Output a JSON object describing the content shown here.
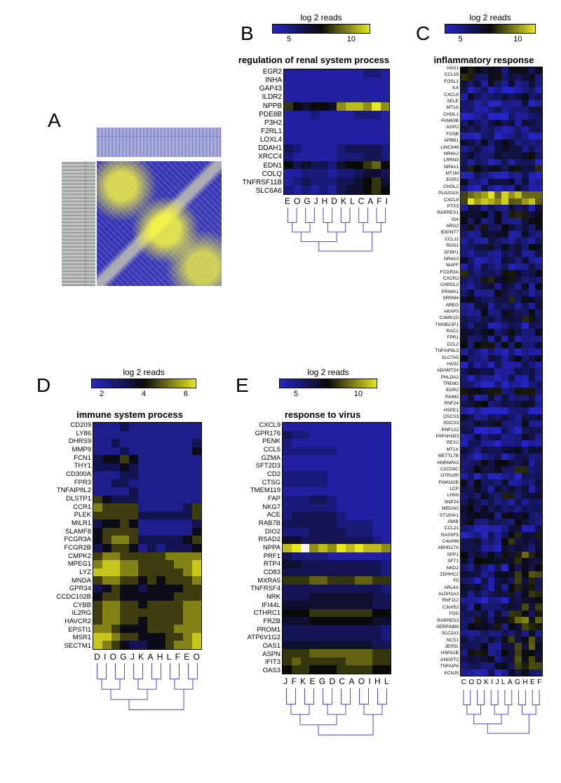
{
  "colormap": {
    "low": "#2525c5",
    "mid_low": "#1a1a80",
    "mid": "#0a0a0a",
    "mid_high": "#808010",
    "high": "#e8e820",
    "white": "#ffffff"
  },
  "colorbar_label": "log 2 reads",
  "panelA": {
    "label": "A",
    "dendro_color": "#4a4ad0"
  },
  "panelB": {
    "label": "B",
    "title": "regulation of renal system process",
    "ticks": [
      "5",
      "10"
    ],
    "genes": [
      "EGR2",
      "INHA",
      "GAP43",
      "ILDR2",
      "NPPB",
      "PDE8B",
      "P3H2",
      "F2RL1",
      "LOXL4",
      "DDAH1",
      "XRCC4",
      "EDN1",
      "COLQ",
      "TNFRSF11B",
      "SLC6A6"
    ],
    "cols": [
      "E",
      "O",
      "G",
      "J",
      "H",
      "D",
      "K",
      "L",
      "C",
      "A",
      "F",
      "I"
    ],
    "values": [
      [
        3,
        3,
        3,
        3,
        3,
        3,
        3,
        3,
        3,
        4,
        4,
        3
      ],
      [
        3,
        3,
        3,
        3,
        3,
        3,
        3,
        3,
        3,
        3,
        3,
        3
      ],
      [
        3,
        3,
        3,
        3,
        3,
        3,
        3,
        3,
        3,
        3,
        3,
        3
      ],
      [
        3,
        3,
        3,
        3,
        3,
        3,
        3,
        3,
        3,
        3,
        3,
        3
      ],
      [
        8,
        7,
        6,
        7,
        7,
        6,
        10,
        11,
        11,
        10,
        12,
        10
      ],
      [
        3,
        3,
        3,
        4,
        3,
        3,
        3,
        3,
        4,
        4,
        4,
        3
      ],
      [
        3,
        3,
        3,
        3,
        3,
        3,
        3,
        3,
        3,
        3,
        3,
        3
      ],
      [
        3,
        3,
        3,
        3,
        3,
        3,
        3,
        3,
        3,
        3,
        3,
        3
      ],
      [
        3,
        3,
        3,
        3,
        3,
        3,
        3,
        3,
        3,
        3,
        3,
        3
      ],
      [
        5,
        4,
        3,
        3,
        3,
        3,
        4,
        5,
        5,
        5,
        5,
        4
      ],
      [
        4,
        3,
        3,
        3,
        3,
        3,
        4,
        4,
        4,
        5,
        5,
        4
      ],
      [
        7,
        5,
        6,
        5,
        5,
        4,
        6,
        7,
        7,
        8,
        9,
        7
      ],
      [
        3,
        3,
        4,
        4,
        4,
        3,
        4,
        4,
        5,
        6,
        6,
        5
      ],
      [
        3,
        4,
        5,
        4,
        4,
        4,
        5,
        5,
        6,
        7,
        8,
        6
      ],
      [
        4,
        3,
        4,
        3,
        4,
        3,
        5,
        6,
        6,
        7,
        8,
        7
      ]
    ]
  },
  "panelC": {
    "label": "C",
    "title": "inflammatory response",
    "ticks": [
      "5",
      "10"
    ],
    "genes": [
      "HAS1",
      "CCL19",
      "FOSL1",
      "IL6",
      "CXCL8",
      "SELE",
      "MT1A",
      "CHI3L1",
      "FAM43B",
      "AGR2",
      "FOSB",
      "APBB1",
      "LINC948",
      "NR4A2",
      "LRRN3",
      "NR4A1",
      "MT1M",
      "EGR3",
      "CHI3L2",
      "PLA2G2A",
      "CXCL9",
      "PTX3",
      "RARRES1",
      "ID4",
      "ARG2",
      "B3GNT7",
      "CCL11",
      "RGS1",
      "SFRP1",
      "NR4A3",
      "MAFF",
      "FCGR3A",
      "CXCR2",
      "CHRDL2",
      "PRIMA1",
      "SRRM4",
      "AREG",
      "AKAP5",
      "CAMK1D",
      "TMSB10P1",
      "RAC2",
      "FPR1",
      "CCL2",
      "TNFAIP8L3",
      "SLC7A5",
      "HAS2",
      "ADAMTS4",
      "PHLDA2",
      "TREM2",
      "EGR2",
      "PAIM2",
      "RNF24",
      "HSPE1",
      "OSCS3",
      "SGCS3",
      "RNF122",
      "PAFAH1B3",
      "REX2",
      "MT1X",
      "METTL7B",
      "HNRNPA3",
      "C2CD4C",
      "OTR10R",
      "FAM162B",
      "LCP",
      "LHX6",
      "SNP24",
      "MEDAG",
      "ST100A1",
      "SMIB",
      "CCL21",
      "RASSF5",
      "C4orf48",
      "ABHD17A",
      "SPP1",
      "SFT1",
      "NKD2",
      "ZDHHC2",
      "F5",
      "ARL4A",
      "ALDH1A3",
      "RNF112",
      "C3orf52",
      "FOS",
      "RARRES3",
      "SERPINB8",
      "SLC2A3",
      "NCS1",
      "JER5L",
      "HSPA1B",
      "ANGPT2",
      "TNFAIP6",
      "KCNJ5"
    ],
    "cols": [
      "C",
      "O",
      "D",
      "K",
      "I",
      "J",
      "L",
      "A",
      "G",
      "H",
      "E",
      "F"
    ],
    "value_range": [
      2,
      12
    ]
  },
  "panelD": {
    "label": "D",
    "title": "immune system process",
    "ticks": [
      "2",
      "4",
      "6"
    ],
    "genes": [
      "CD209",
      "LY86",
      "DHRS9",
      "MMP9",
      "FCN1",
      "THY1",
      "CD300A",
      "FPR3",
      "TNFAIP8L2",
      "DLSTP1",
      "CCR1",
      "PLEK",
      "MILR1",
      "SLAMF8",
      "FCGR3A",
      "FCGR2B",
      "CMPK2",
      "MPEG1",
      "LYZ",
      "MNDA",
      "GPR34",
      "CCDC102B",
      "CYBB",
      "IL2RG",
      "HAVCR2",
      "EPSTI1",
      "MSR1",
      "SECTM1"
    ],
    "cols": [
      "D",
      "I",
      "O",
      "G",
      "J",
      "K",
      "A",
      "H",
      "L",
      "F",
      "E",
      "O"
    ],
    "values": [
      [
        2,
        2,
        2,
        3,
        2,
        2,
        2,
        2,
        2,
        2,
        2,
        2
      ],
      [
        2,
        2,
        2,
        2,
        2,
        2,
        2,
        2,
        2,
        2,
        2,
        2
      ],
      [
        2,
        2,
        3,
        2,
        2,
        2,
        2,
        2,
        2,
        2,
        2,
        3
      ],
      [
        2,
        2,
        2,
        3,
        2,
        2,
        2,
        2,
        2,
        2,
        2,
        4
      ],
      [
        3,
        4,
        4,
        5,
        4,
        2,
        2,
        2,
        2,
        2,
        2,
        2
      ],
      [
        3,
        3,
        3,
        4,
        3,
        2,
        2,
        2,
        2,
        2,
        2,
        2
      ],
      [
        2,
        2,
        2,
        3,
        3,
        2,
        2,
        2,
        2,
        2,
        2,
        2
      ],
      [
        2,
        2,
        3,
        3,
        2,
        2,
        2,
        2,
        2,
        2,
        2,
        2
      ],
      [
        2,
        2,
        2,
        2,
        3,
        2,
        2,
        2,
        2,
        2,
        2,
        2
      ],
      [
        5,
        4,
        3,
        3,
        3,
        2,
        2,
        2,
        2,
        2,
        2,
        2
      ],
      [
        6,
        5,
        5,
        5,
        5,
        2,
        2,
        2,
        2,
        2,
        3,
        5
      ],
      [
        5,
        5,
        5,
        5,
        5,
        3,
        3,
        3,
        3,
        3,
        3,
        5
      ],
      [
        3,
        4,
        4,
        5,
        4,
        2,
        2,
        2,
        2,
        2,
        2,
        3
      ],
      [
        4,
        5,
        5,
        5,
        5,
        2,
        2,
        2,
        2,
        2,
        2,
        4
      ],
      [
        4,
        5,
        6,
        6,
        5,
        3,
        3,
        3,
        3,
        3,
        4,
        5
      ],
      [
        3,
        4,
        5,
        5,
        4,
        2,
        3,
        2,
        3,
        3,
        3,
        4
      ],
      [
        5,
        6,
        6,
        5,
        5,
        5,
        5,
        5,
        6,
        6,
        6,
        6
      ],
      [
        6,
        7,
        7,
        6,
        6,
        5,
        5,
        5,
        5,
        6,
        6,
        7
      ],
      [
        7,
        7,
        7,
        6,
        6,
        5,
        5,
        5,
        5,
        5,
        6,
        7
      ],
      [
        5,
        6,
        6,
        5,
        5,
        4,
        5,
        4,
        5,
        5,
        5,
        6
      ],
      [
        3,
        4,
        5,
        4,
        4,
        3,
        4,
        4,
        4,
        4,
        5,
        5
      ],
      [
        4,
        5,
        5,
        4,
        4,
        4,
        4,
        4,
        4,
        5,
        5,
        5
      ],
      [
        5,
        6,
        6,
        5,
        5,
        4,
        5,
        5,
        5,
        5,
        6,
        6
      ],
      [
        5,
        6,
        6,
        5,
        5,
        5,
        5,
        5,
        5,
        5,
        6,
        6
      ],
      [
        5,
        6,
        6,
        5,
        5,
        4,
        5,
        5,
        5,
        5,
        6,
        6
      ],
      [
        6,
        6,
        5,
        4,
        4,
        4,
        5,
        5,
        5,
        6,
        6,
        6
      ],
      [
        7,
        7,
        6,
        5,
        5,
        4,
        4,
        4,
        5,
        5,
        6,
        7
      ],
      [
        7,
        6,
        5,
        4,
        3,
        3,
        4,
        4,
        5,
        6,
        6,
        7
      ]
    ]
  },
  "panelE": {
    "label": "E",
    "title": "response to virus",
    "ticks": [
      "5",
      "10"
    ],
    "genes": [
      "CXCL9",
      "GPR176",
      "PENK",
      "CCL5",
      "GZMA",
      "SFT2D3",
      "CD2",
      "CTSG",
      "TMEM119",
      "FAP",
      "NKG7",
      "ACE",
      "RAB7B",
      "DIO2",
      "RSAD2",
      "NPPA",
      "PRF1",
      "RTP4",
      "CD83",
      "MXRA5",
      "TNFRSF4",
      "NRK",
      "IFI44L",
      "CTHRC1",
      "FRZB",
      "PROM1",
      "ATP6V1G2",
      "OAS1",
      "ASPN",
      "IFIT3",
      "OAS3"
    ],
    "cols": [
      "J",
      "F",
      "K",
      "E",
      "G",
      "D",
      "C",
      "A",
      "O",
      "I",
      "H",
      "L"
    ],
    "values": [
      [
        3,
        3,
        3,
        3,
        3,
        3,
        3,
        3,
        3,
        3,
        3,
        3
      ],
      [
        5,
        4,
        4,
        3,
        3,
        3,
        3,
        3,
        3,
        3,
        3,
        3
      ],
      [
        4,
        3,
        3,
        3,
        3,
        3,
        3,
        3,
        3,
        3,
        3,
        3
      ],
      [
        4,
        4,
        4,
        4,
        4,
        4,
        3,
        3,
        3,
        3,
        3,
        3
      ],
      [
        3,
        3,
        3,
        3,
        3,
        3,
        3,
        3,
        3,
        3,
        3,
        3
      ],
      [
        3,
        3,
        3,
        3,
        3,
        3,
        3,
        3,
        3,
        3,
        3,
        3
      ],
      [
        4,
        4,
        4,
        4,
        4,
        3,
        3,
        3,
        3,
        3,
        3,
        3
      ],
      [
        4,
        4,
        4,
        4,
        4,
        3,
        3,
        3,
        3,
        3,
        3,
        3
      ],
      [
        3,
        3,
        3,
        3,
        3,
        3,
        3,
        3,
        3,
        3,
        3,
        3
      ],
      [
        4,
        4,
        4,
        5,
        5,
        4,
        3,
        3,
        3,
        3,
        3,
        3
      ],
      [
        4,
        4,
        4,
        4,
        4,
        4,
        3,
        3,
        3,
        3,
        3,
        3
      ],
      [
        4,
        5,
        5,
        5,
        5,
        5,
        4,
        3,
        3,
        3,
        3,
        3
      ],
      [
        5,
        5,
        5,
        5,
        5,
        5,
        4,
        4,
        4,
        4,
        3,
        3
      ],
      [
        4,
        4,
        4,
        5,
        5,
        5,
        5,
        4,
        4,
        4,
        3,
        3
      ],
      [
        6,
        6,
        5,
        5,
        5,
        5,
        5,
        5,
        5,
        5,
        4,
        3
      ],
      [
        11,
        13,
        14,
        10,
        11,
        10,
        12,
        11,
        12,
        11,
        11,
        10
      ],
      [
        5,
        4,
        4,
        4,
        4,
        3,
        3,
        3,
        3,
        3,
        3,
        3
      ],
      [
        6,
        6,
        5,
        5,
        5,
        5,
        5,
        5,
        5,
        5,
        5,
        4
      ],
      [
        5,
        5,
        5,
        5,
        5,
        5,
        5,
        5,
        5,
        5,
        5,
        4
      ],
      [
        8,
        8,
        8,
        9,
        9,
        8,
        8,
        8,
        9,
        9,
        8,
        8
      ],
      [
        5,
        5,
        5,
        5,
        5,
        5,
        5,
        5,
        5,
        5,
        5,
        4
      ],
      [
        5,
        5,
        5,
        6,
        6,
        6,
        6,
        6,
        6,
        6,
        5,
        5
      ],
      [
        6,
        6,
        6,
        6,
        6,
        6,
        6,
        6,
        6,
        6,
        5,
        5
      ],
      [
        7,
        7,
        7,
        8,
        8,
        8,
        8,
        8,
        8,
        8,
        7,
        7
      ],
      [
        6,
        6,
        6,
        7,
        7,
        7,
        7,
        7,
        7,
        7,
        6,
        6
      ],
      [
        5,
        5,
        5,
        5,
        5,
        5,
        5,
        5,
        5,
        5,
        5,
        4
      ],
      [
        5,
        5,
        5,
        5,
        5,
        5,
        5,
        5,
        5,
        5,
        5,
        4
      ],
      [
        6,
        6,
        6,
        6,
        6,
        6,
        6,
        6,
        6,
        6,
        5,
        5
      ],
      [
        8,
        8,
        8,
        9,
        9,
        9,
        9,
        9,
        9,
        9,
        8,
        8
      ],
      [
        8,
        9,
        8,
        8,
        8,
        8,
        8,
        9,
        9,
        9,
        8,
        8
      ],
      [
        7,
        8,
        8,
        7,
        7,
        7,
        8,
        8,
        8,
        8,
        7,
        7
      ]
    ]
  }
}
